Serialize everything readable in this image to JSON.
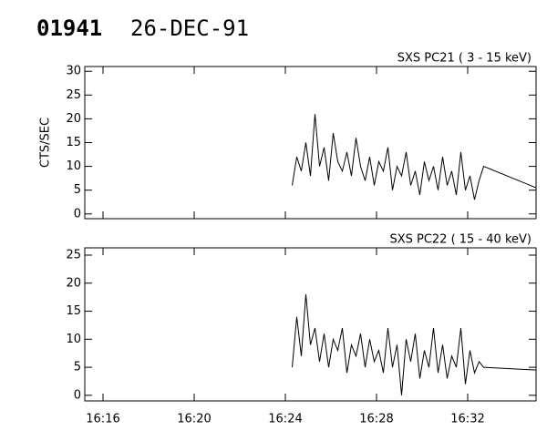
{
  "header": {
    "id": "01941",
    "date": "26-DEC-91"
  },
  "chart_data": [
    {
      "type": "line",
      "title": "SXS PC21  (  3 - 15 keV)",
      "y_label": "CTS/SEC",
      "x": [
        24.3,
        24.5,
        24.7,
        24.9,
        25.1,
        25.3,
        25.5,
        25.7,
        25.9,
        26.1,
        26.3,
        26.5,
        26.7,
        26.9,
        27.1,
        27.3,
        27.5,
        27.7,
        27.9,
        28.1,
        28.3,
        28.5,
        28.7,
        28.9,
        29.1,
        29.3,
        29.5,
        29.7,
        29.9,
        30.1,
        30.3,
        30.5,
        30.7,
        30.9,
        31.1,
        31.3,
        31.5,
        31.7,
        31.9,
        32.1,
        32.3,
        32.5,
        32.7,
        35
      ],
      "series": [
        {
          "color": "#000000",
          "values": [
            6,
            12,
            9,
            15,
            8,
            21,
            10,
            14,
            7,
            17,
            11,
            9,
            13,
            8,
            16,
            10,
            7,
            12,
            6,
            11,
            9,
            14,
            5,
            10,
            8,
            13,
            6,
            9,
            4,
            11,
            7,
            10,
            5,
            12,
            6,
            9,
            4,
            13,
            5,
            8,
            3,
            7,
            10,
            5.5
          ]
        }
      ],
      "xlim": [
        15.2,
        35
      ],
      "ylim": [
        -1,
        31
      ],
      "xticks": [
        16,
        20,
        24,
        28,
        32
      ],
      "yticks": [
        0,
        5,
        10,
        15,
        20,
        25,
        30
      ]
    },
    {
      "type": "line",
      "title": "SXS PC22  ( 15 - 40 keV)",
      "x": [
        24.3,
        24.5,
        24.7,
        24.9,
        25.1,
        25.3,
        25.5,
        25.7,
        25.9,
        26.1,
        26.3,
        26.5,
        26.7,
        26.9,
        27.1,
        27.3,
        27.5,
        27.7,
        27.9,
        28.1,
        28.3,
        28.5,
        28.7,
        28.9,
        29.1,
        29.3,
        29.5,
        29.7,
        29.9,
        30.1,
        30.3,
        30.5,
        30.7,
        30.9,
        31.1,
        31.3,
        31.5,
        31.7,
        31.9,
        32.1,
        32.3,
        32.5,
        32.7,
        35
      ],
      "series": [
        {
          "color": "#000000",
          "values": [
            5,
            14,
            7,
            18,
            9,
            12,
            6,
            11,
            5,
            10,
            8,
            12,
            4,
            9,
            7,
            11,
            5,
            10,
            6,
            8,
            4,
            12,
            5,
            9,
            0,
            10,
            6,
            11,
            3,
            8,
            5,
            12,
            4,
            9,
            3,
            7,
            5,
            12,
            2,
            8,
            4,
            6,
            5,
            4.5
          ]
        }
      ],
      "xlim": [
        15.2,
        35
      ],
      "ylim": [
        -1,
        26.3
      ],
      "xticks": [
        {
          "value": 16,
          "label": "16:16"
        },
        {
          "value": 20,
          "label": "16:20"
        },
        {
          "value": 24,
          "label": "16:24"
        },
        {
          "value": 28,
          "label": "16:28"
        },
        {
          "value": 32,
          "label": "16:32"
        }
      ],
      "yticks": [
        0,
        5,
        10,
        15,
        20,
        25
      ]
    }
  ]
}
